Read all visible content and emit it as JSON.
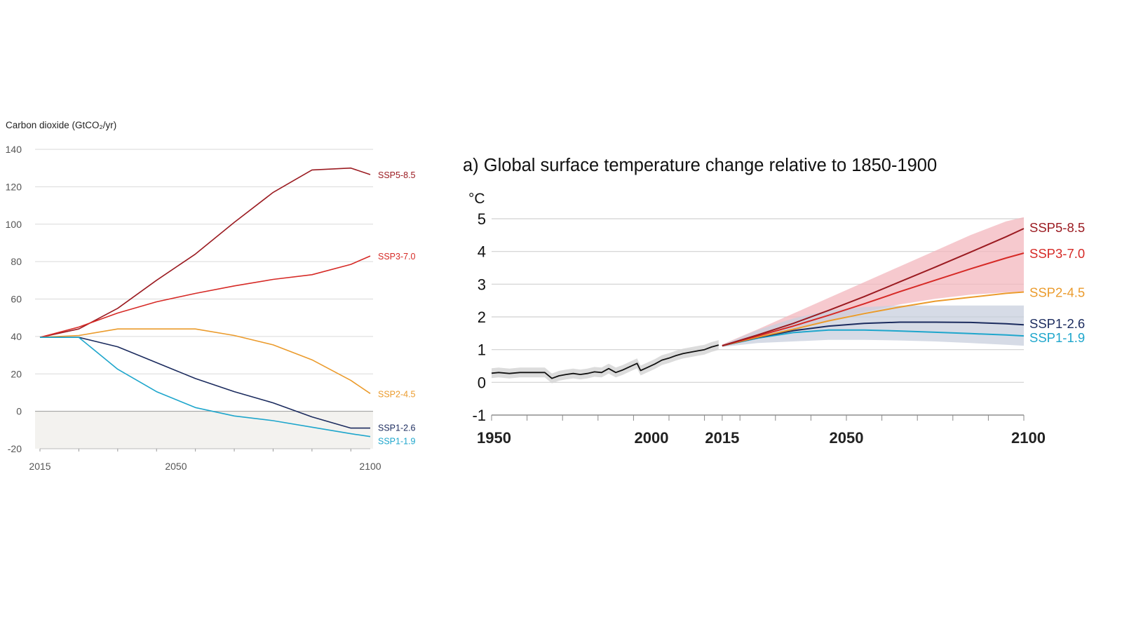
{
  "colors": {
    "ssp585": "#9b1b21",
    "ssp370": "#d62a26",
    "ssp245": "#eb9b2c",
    "ssp126": "#1b2b5e",
    "ssp119": "#1ea6cc",
    "historical": "#111111",
    "grid": "#d9d9d9",
    "negative_band": "#f3f2ef",
    "zero_line": "#9a9a9a",
    "ssp585_band": "#f3b7bd",
    "ssp126_band": "#c8cfdd",
    "hist_band": "#d6d6d6"
  },
  "chart_data": [
    {
      "type": "line",
      "title": "",
      "ylabel": "Carbon dioxide (GtCO₂/yr)",
      "xlabel": "",
      "xlim": [
        2015,
        2100
      ],
      "ylim": [
        -20,
        140
      ],
      "x_ticks": [
        2015,
        2050,
        2100
      ],
      "y_ticks": [
        -20,
        0,
        20,
        40,
        60,
        80,
        100,
        120,
        140
      ],
      "grid": true,
      "negative_region_shaded": true,
      "legend": "direct labels at line ends",
      "series": [
        {
          "name": "SSP5-8.5",
          "color_key": "ssp585",
          "x": [
            2015,
            2025,
            2035,
            2045,
            2055,
            2065,
            2075,
            2085,
            2095,
            2100
          ],
          "y": [
            39.5,
            44,
            55,
            70,
            84,
            101,
            117,
            129,
            130,
            126.5
          ]
        },
        {
          "name": "SSP3-7.0",
          "color_key": "ssp370",
          "x": [
            2015,
            2025,
            2035,
            2045,
            2055,
            2065,
            2075,
            2085,
            2095,
            2100
          ],
          "y": [
            39.5,
            45,
            52.5,
            58.5,
            63,
            67,
            70.5,
            73,
            78.5,
            83
          ]
        },
        {
          "name": "SSP2-4.5",
          "color_key": "ssp245",
          "x": [
            2015,
            2025,
            2035,
            2045,
            2055,
            2065,
            2075,
            2085,
            2095,
            2100
          ],
          "y": [
            39.5,
            40.5,
            44,
            44,
            44,
            40.5,
            35.5,
            27.5,
            16.5,
            9.5
          ]
        },
        {
          "name": "SSP1-2.6",
          "color_key": "ssp126",
          "x": [
            2015,
            2025,
            2035,
            2045,
            2055,
            2065,
            2075,
            2085,
            2095,
            2100
          ],
          "y": [
            39.5,
            39.5,
            34.5,
            26,
            17.5,
            10.5,
            4.5,
            -3,
            -9,
            -9
          ]
        },
        {
          "name": "SSP1-1.9",
          "color_key": "ssp119",
          "x": [
            2015,
            2025,
            2035,
            2045,
            2055,
            2065,
            2075,
            2085,
            2095,
            2100
          ],
          "y": [
            39.5,
            39.5,
            22.5,
            10.5,
            2,
            -2.5,
            -5,
            -8.5,
            -12,
            -13.5
          ]
        }
      ]
    },
    {
      "type": "line",
      "title": "a) Global surface temperature change relative to 1850-1900",
      "ylabel": "°C",
      "xlabel": "",
      "xlim": [
        1950,
        2100
      ],
      "ylim": [
        -1,
        5
      ],
      "x_tick_labels": [
        1950,
        2000,
        2015,
        2050,
        2100
      ],
      "x_minor_ticks": [
        1960,
        1970,
        1980,
        1990,
        2010,
        2020,
        2030,
        2040,
        2060,
        2070,
        2080,
        2090
      ],
      "y_ticks": [
        -1,
        0,
        1,
        2,
        3,
        4,
        5
      ],
      "grid": true,
      "legend": "direct labels at line ends",
      "historical": {
        "color_key": "historical",
        "x": [
          1950,
          1952,
          1955,
          1958,
          1961,
          1963,
          1965,
          1967,
          1969,
          1971,
          1973,
          1975,
          1977,
          1979,
          1981,
          1983,
          1985,
          1987,
          1989,
          1991,
          1992,
          1994,
          1996,
          1998,
          2000,
          2002,
          2004,
          2006,
          2008,
          2010,
          2012,
          2014
        ],
        "y": [
          0.28,
          0.3,
          0.27,
          0.3,
          0.3,
          0.3,
          0.3,
          0.12,
          0.2,
          0.24,
          0.27,
          0.24,
          0.27,
          0.32,
          0.3,
          0.42,
          0.3,
          0.38,
          0.48,
          0.58,
          0.36,
          0.46,
          0.56,
          0.68,
          0.74,
          0.82,
          0.88,
          0.92,
          0.96,
          1.0,
          1.08,
          1.14
        ],
        "band_halfwidth": 0.15
      },
      "series": [
        {
          "name": "SSP5-8.5",
          "color_key": "ssp585",
          "x": [
            2015,
            2025,
            2035,
            2045,
            2055,
            2065,
            2075,
            2085,
            2095,
            2100
          ],
          "y": [
            1.12,
            1.45,
            1.8,
            2.2,
            2.62,
            3.07,
            3.52,
            3.98,
            4.45,
            4.7
          ],
          "band_upper": [
            1.16,
            1.62,
            2.1,
            2.58,
            3.06,
            3.54,
            4.02,
            4.5,
            4.92,
            5.05
          ],
          "band_lower": [
            1.08,
            1.38,
            1.62,
            1.9,
            2.15,
            2.38,
            2.55,
            2.68,
            2.75,
            2.78
          ]
        },
        {
          "name": "SSP3-7.0",
          "color_key": "ssp370",
          "x": [
            2015,
            2025,
            2035,
            2045,
            2055,
            2065,
            2075,
            2085,
            2095,
            2100
          ],
          "y": [
            1.12,
            1.42,
            1.72,
            2.05,
            2.4,
            2.77,
            3.12,
            3.47,
            3.8,
            3.95
          ]
        },
        {
          "name": "SSP2-4.5",
          "color_key": "ssp245",
          "x": [
            2015,
            2025,
            2035,
            2045,
            2055,
            2065,
            2075,
            2085,
            2095,
            2100
          ],
          "y": [
            1.12,
            1.38,
            1.62,
            1.88,
            2.1,
            2.3,
            2.48,
            2.6,
            2.72,
            2.76
          ]
        },
        {
          "name": "SSP1-2.6",
          "color_key": "ssp126",
          "x": [
            2015,
            2025,
            2035,
            2045,
            2055,
            2065,
            2075,
            2085,
            2095,
            2100
          ],
          "y": [
            1.12,
            1.37,
            1.58,
            1.72,
            1.8,
            1.84,
            1.84,
            1.83,
            1.79,
            1.76
          ],
          "band_upper": [
            1.14,
            1.6,
            1.95,
            2.2,
            2.3,
            2.35,
            2.35,
            2.35,
            2.35,
            2.35
          ],
          "band_lower": [
            1.08,
            1.2,
            1.25,
            1.3,
            1.3,
            1.28,
            1.25,
            1.2,
            1.15,
            1.12
          ]
        },
        {
          "name": "SSP1-1.9",
          "color_key": "ssp119",
          "x": [
            2015,
            2025,
            2035,
            2045,
            2055,
            2065,
            2075,
            2085,
            2095,
            2100
          ],
          "y": [
            1.12,
            1.35,
            1.52,
            1.6,
            1.6,
            1.57,
            1.53,
            1.49,
            1.45,
            1.42
          ]
        }
      ]
    }
  ]
}
